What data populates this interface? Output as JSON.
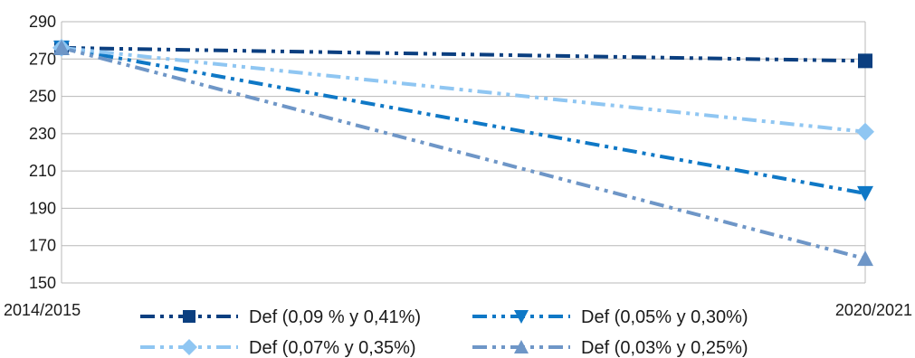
{
  "chart_data": {
    "type": "line",
    "categories": [
      "2014/2015",
      "2020/2021"
    ],
    "ylim": [
      150,
      290
    ],
    "yticks": [
      150,
      170,
      190,
      210,
      230,
      250,
      270,
      290
    ],
    "grid": true,
    "legend_position": "bottom",
    "series": [
      {
        "name": "Def (0,09 % y 0,41%)",
        "values": [
          276,
          269
        ],
        "color": "#0b3f80",
        "marker": "square"
      },
      {
        "name": "Def (0,05% y 0,30%)",
        "values": [
          276,
          198
        ],
        "color": "#0f78c6",
        "marker": "triangle-down"
      },
      {
        "name": "Def (0,07% y 0,35%)",
        "values": [
          276,
          231
        ],
        "color": "#8fc6f2",
        "marker": "diamond"
      },
      {
        "name": "Def (0,03% y 0,25%)",
        "values": [
          276,
          163
        ],
        "color": "#6e96c7",
        "marker": "triangle-up"
      }
    ]
  }
}
